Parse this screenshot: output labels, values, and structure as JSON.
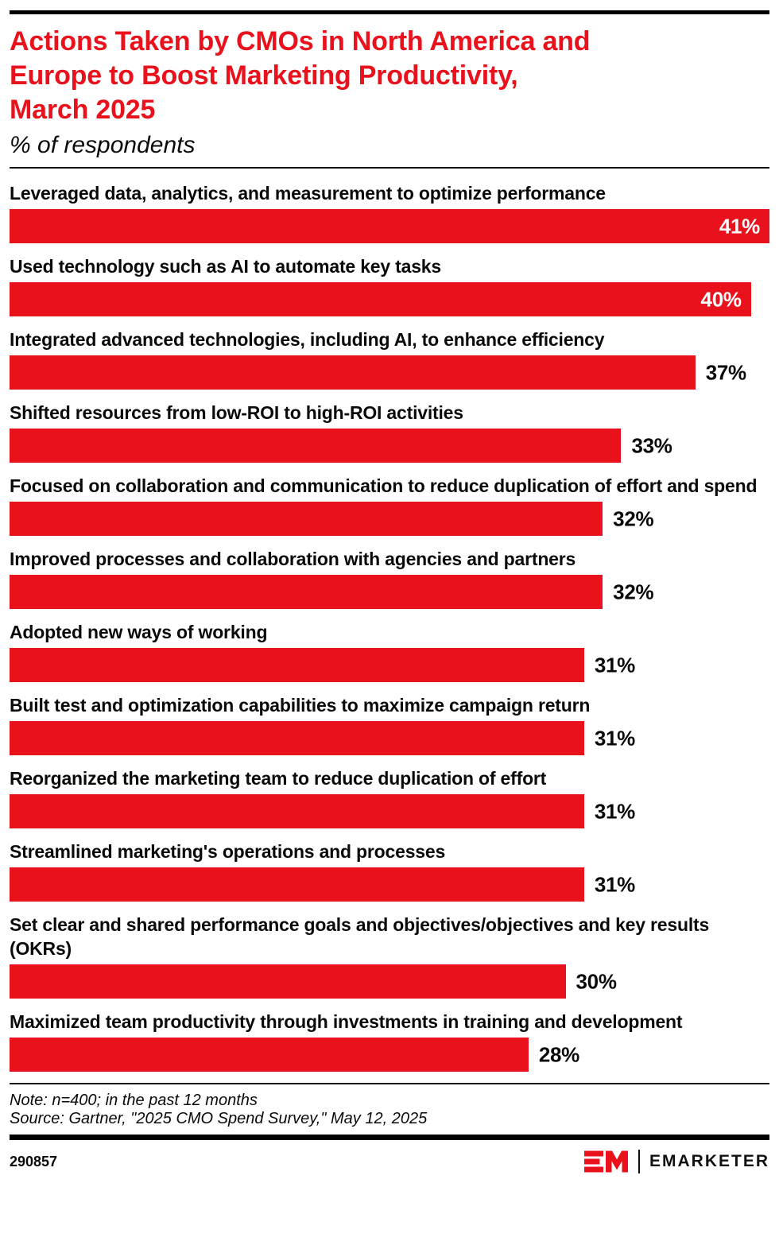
{
  "header": {
    "title_lines": [
      "Actions Taken by CMOs in North America and",
      "Europe to Boost Marketing Productivity,",
      "March 2025"
    ],
    "subtitle": "% of respondents"
  },
  "chart_data": {
    "type": "bar",
    "orientation": "horizontal",
    "title": "Actions Taken by CMOs in North America and Europe to Boost Marketing Productivity, March 2025",
    "subtitle": "% of respondents",
    "unit": "%",
    "xlim": [
      0,
      41
    ],
    "grid": false,
    "axes_hidden": true,
    "value_label_suffix": "%",
    "categories": [
      "Leveraged data, analytics, and measurement to optimize performance",
      "Used technology such as AI to automate key tasks",
      "Integrated advanced technologies, including AI, to enhance efficiency",
      "Shifted resources from low-ROI to high-ROI activities",
      "Focused on collaboration and communication to reduce duplication of effort and spend",
      "Improved processes and collaboration with agencies and partners",
      "Adopted new ways of working",
      "Built test and optimization capabilities to maximize campaign return",
      "Reorganized the marketing team to reduce duplication of effort",
      "Streamlined marketing's operations and processes",
      "Set clear and shared performance goals and objectives/objectives and key results (OKRs)",
      "Maximized team productivity through investments in training and development"
    ],
    "values": [
      41,
      40,
      37,
      33,
      32,
      32,
      31,
      31,
      31,
      31,
      30,
      28
    ]
  },
  "footer": {
    "note": "Note: n=400; in the past 12 months",
    "source": "Source: Gartner, \"2025 CMO Spend Survey,\" May 12, 2025",
    "chart_id": "290857",
    "brand_name": "EMARKETER"
  },
  "colors": {
    "bar": "#E8111C",
    "title": "#E8111C",
    "text": "#0A0A0A",
    "value_inside": "#FFFFFF",
    "rule": "#000000"
  }
}
